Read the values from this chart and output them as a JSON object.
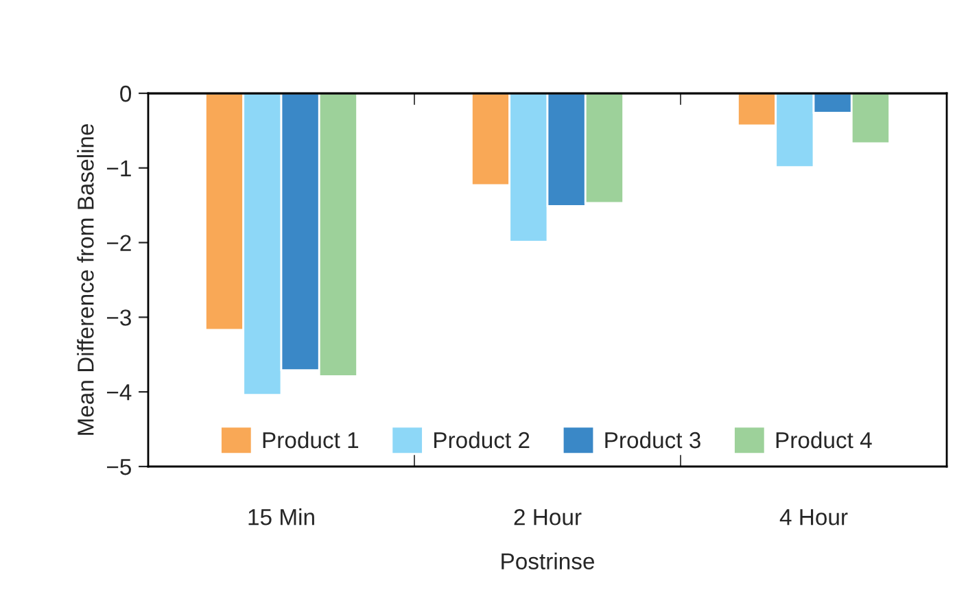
{
  "chart_data": {
    "type": "bar",
    "xlabel": "Postrinse",
    "ylabel": "Mean Difference from Baseline",
    "categories": [
      "15 Min",
      "2 Hour",
      "4 Hour"
    ],
    "series": [
      {
        "name": "Product 1",
        "color": "#f9a856",
        "values": [
          -3.17,
          -1.23,
          -0.43
        ]
      },
      {
        "name": "Product 2",
        "color": "#8dd7f7",
        "values": [
          -4.04,
          -1.99,
          -0.99
        ]
      },
      {
        "name": "Product 3",
        "color": "#3a88c7",
        "values": [
          -3.71,
          -1.51,
          -0.26
        ]
      },
      {
        "name": "Product 4",
        "color": "#9dd19a",
        "values": [
          -3.79,
          -1.47,
          -0.67
        ]
      }
    ],
    "ylim": [
      -5,
      0
    ],
    "yticks": [
      {
        "value": -5,
        "label": "−5"
      },
      {
        "value": -4,
        "label": "−4"
      },
      {
        "value": -3,
        "label": "−3"
      },
      {
        "value": -2,
        "label": "−2"
      },
      {
        "value": -1,
        "label": "−1"
      },
      0
    ],
    "grid": false,
    "legend": "bottom"
  }
}
